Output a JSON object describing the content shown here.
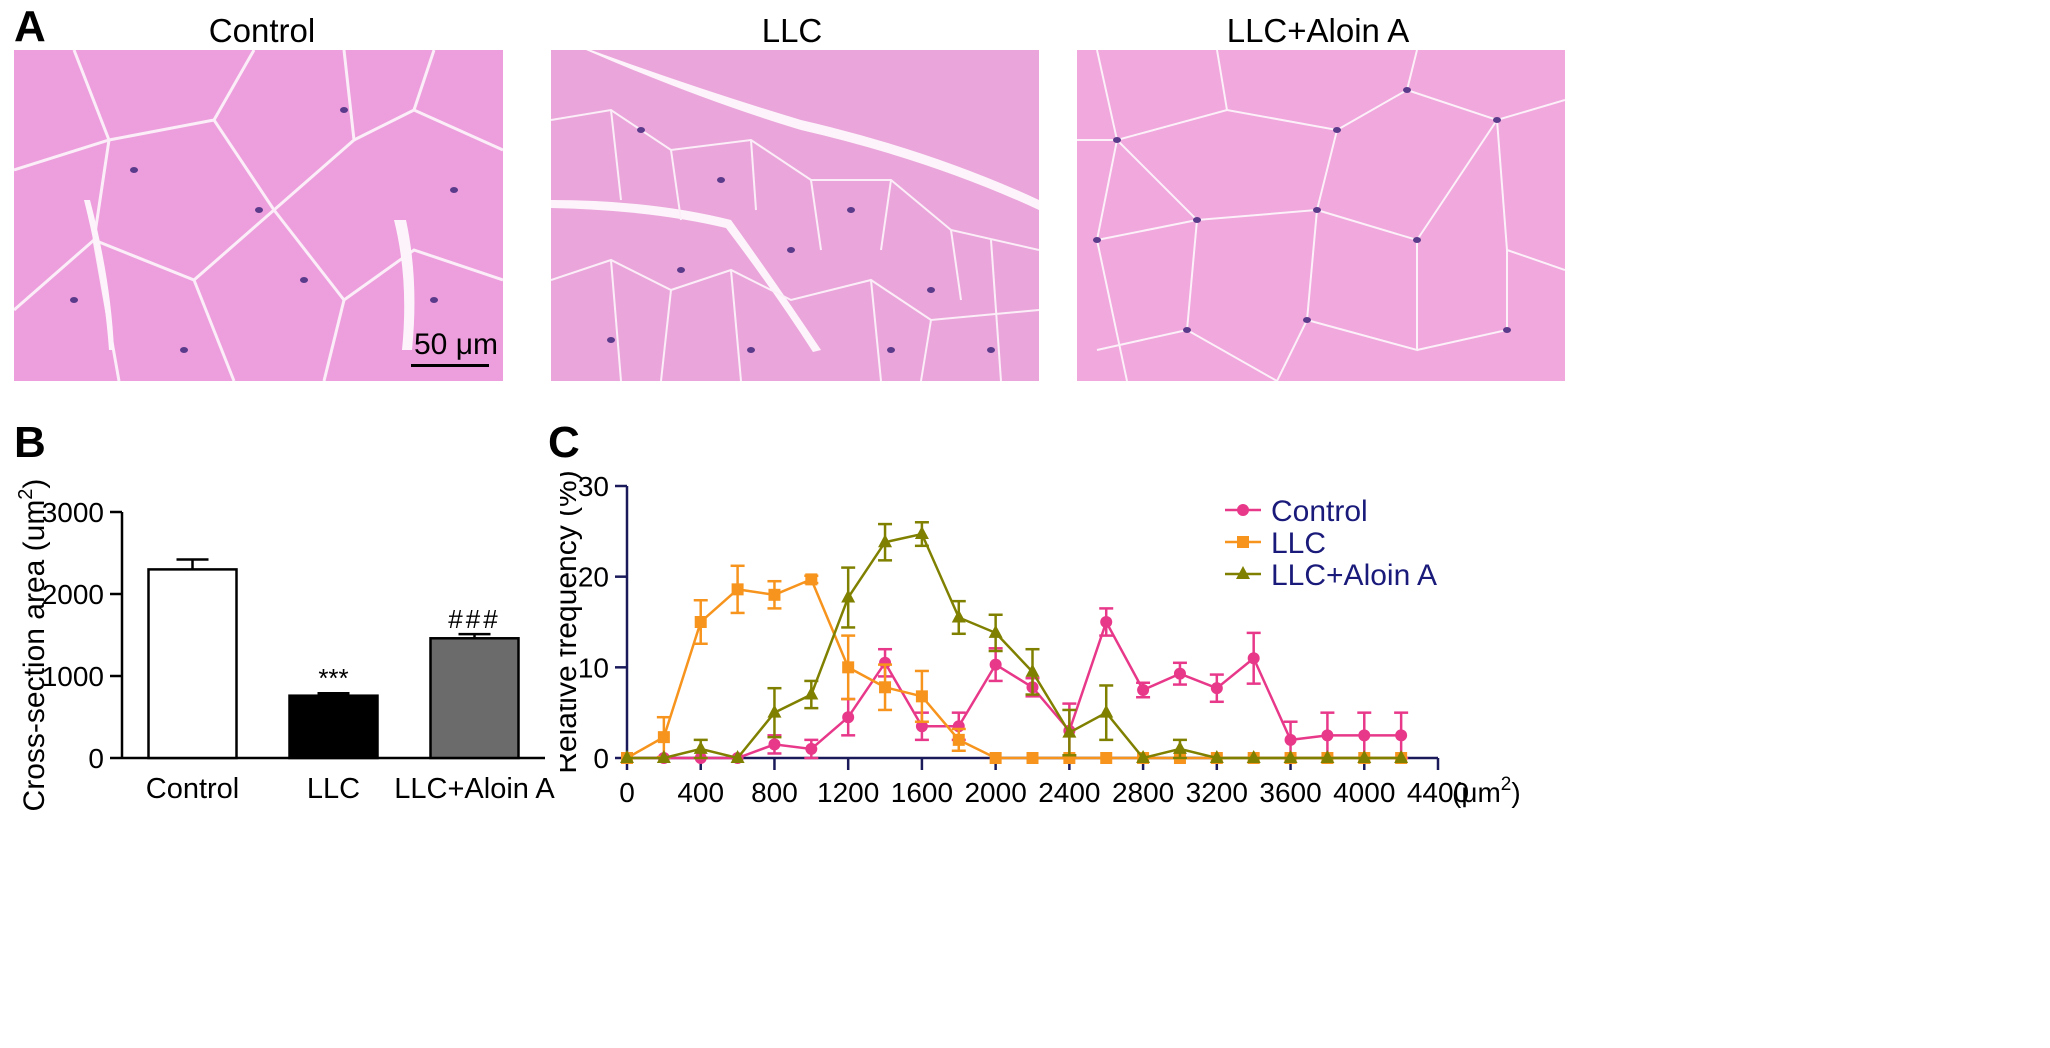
{
  "panels": {
    "a": "A",
    "b": "B",
    "c": "C"
  },
  "micrographs": {
    "titles": [
      "Control",
      "LLC",
      "LLC+Aloin A"
    ],
    "scale_bar_label": "50 μm"
  },
  "chart_data": [
    {
      "type": "bar",
      "ylabel": "Cross-section area (um",
      "ylabel_superscript": "2",
      "ylabel_close": ")",
      "categories": [
        "Control",
        "LLC",
        "LLC+Aloin A"
      ],
      "values": [
        2300,
        760,
        1460
      ],
      "errors": [
        120,
        30,
        50
      ],
      "bar_colors": [
        "#ffffff",
        "#000000",
        "#6b6b6b"
      ],
      "annotations": [
        "",
        "***",
        "###"
      ],
      "ylim": [
        0,
        3000
      ],
      "yticks": [
        0,
        1000,
        2000,
        3000
      ]
    },
    {
      "type": "line",
      "ylabel": "Relative frequency (%)",
      "x_unit_label": "(μm",
      "x_unit_superscript": "2",
      "x_unit_close": ")",
      "xlim": [
        0,
        4400
      ],
      "ylim": [
        0,
        30
      ],
      "xticks": [
        0,
        400,
        800,
        1200,
        1600,
        2000,
        2400,
        2800,
        3200,
        3600,
        4000,
        4400
      ],
      "yticks": [
        0,
        10,
        20,
        30
      ],
      "x": [
        0,
        200,
        400,
        600,
        800,
        1000,
        1200,
        1400,
        1600,
        1800,
        2000,
        2200,
        2400,
        2600,
        2800,
        3000,
        3200,
        3400,
        3600,
        3800,
        4000,
        4200
      ],
      "legend_position": "top-right",
      "series": [
        {
          "name": "Control",
          "color": "#e8388a",
          "marker": "circle",
          "values": [
            0,
            0,
            0,
            0,
            1.5,
            1,
            4.5,
            10.5,
            3.5,
            3.5,
            10.3,
            7.8,
            3,
            15,
            7.5,
            9.3,
            7.7,
            11,
            2,
            2.5,
            2.5,
            2.5
          ],
          "errors": [
            0,
            0,
            0,
            0,
            1,
            1,
            2,
            1.5,
            1.5,
            1.5,
            1.8,
            1,
            3,
            1.5,
            0.8,
            1.2,
            1.5,
            2.8,
            2,
            2.5,
            2.5,
            2.5
          ]
        },
        {
          "name": "LLC",
          "color": "#f7941d",
          "marker": "square",
          "values": [
            0,
            2.3,
            15,
            18.6,
            18,
            19.7,
            10,
            7.8,
            6.8,
            2,
            0,
            0,
            0,
            0,
            0,
            0,
            0,
            0,
            0,
            0,
            0,
            0
          ],
          "errors": [
            0,
            2.2,
            2.4,
            2.6,
            1.5,
            0.4,
            3.5,
            2.5,
            2.8,
            1.2,
            0,
            0,
            0,
            0,
            0,
            0,
            0,
            0,
            0,
            0,
            0,
            0
          ]
        },
        {
          "name": "LLC+Aloin A",
          "color": "#808000",
          "marker": "triangle",
          "values": [
            0,
            0,
            1,
            0,
            5,
            7,
            17.7,
            23.8,
            24.7,
            15.5,
            13.8,
            9.5,
            2.8,
            5,
            0,
            1,
            0,
            0,
            0,
            0,
            0,
            0
          ],
          "errors": [
            0,
            0,
            1,
            0,
            2.7,
            1.5,
            3.3,
            2,
            1.3,
            1.8,
            2,
            2.5,
            2.5,
            3,
            0,
            1,
            0,
            0,
            0,
            0,
            0,
            0
          ]
        }
      ]
    }
  ]
}
